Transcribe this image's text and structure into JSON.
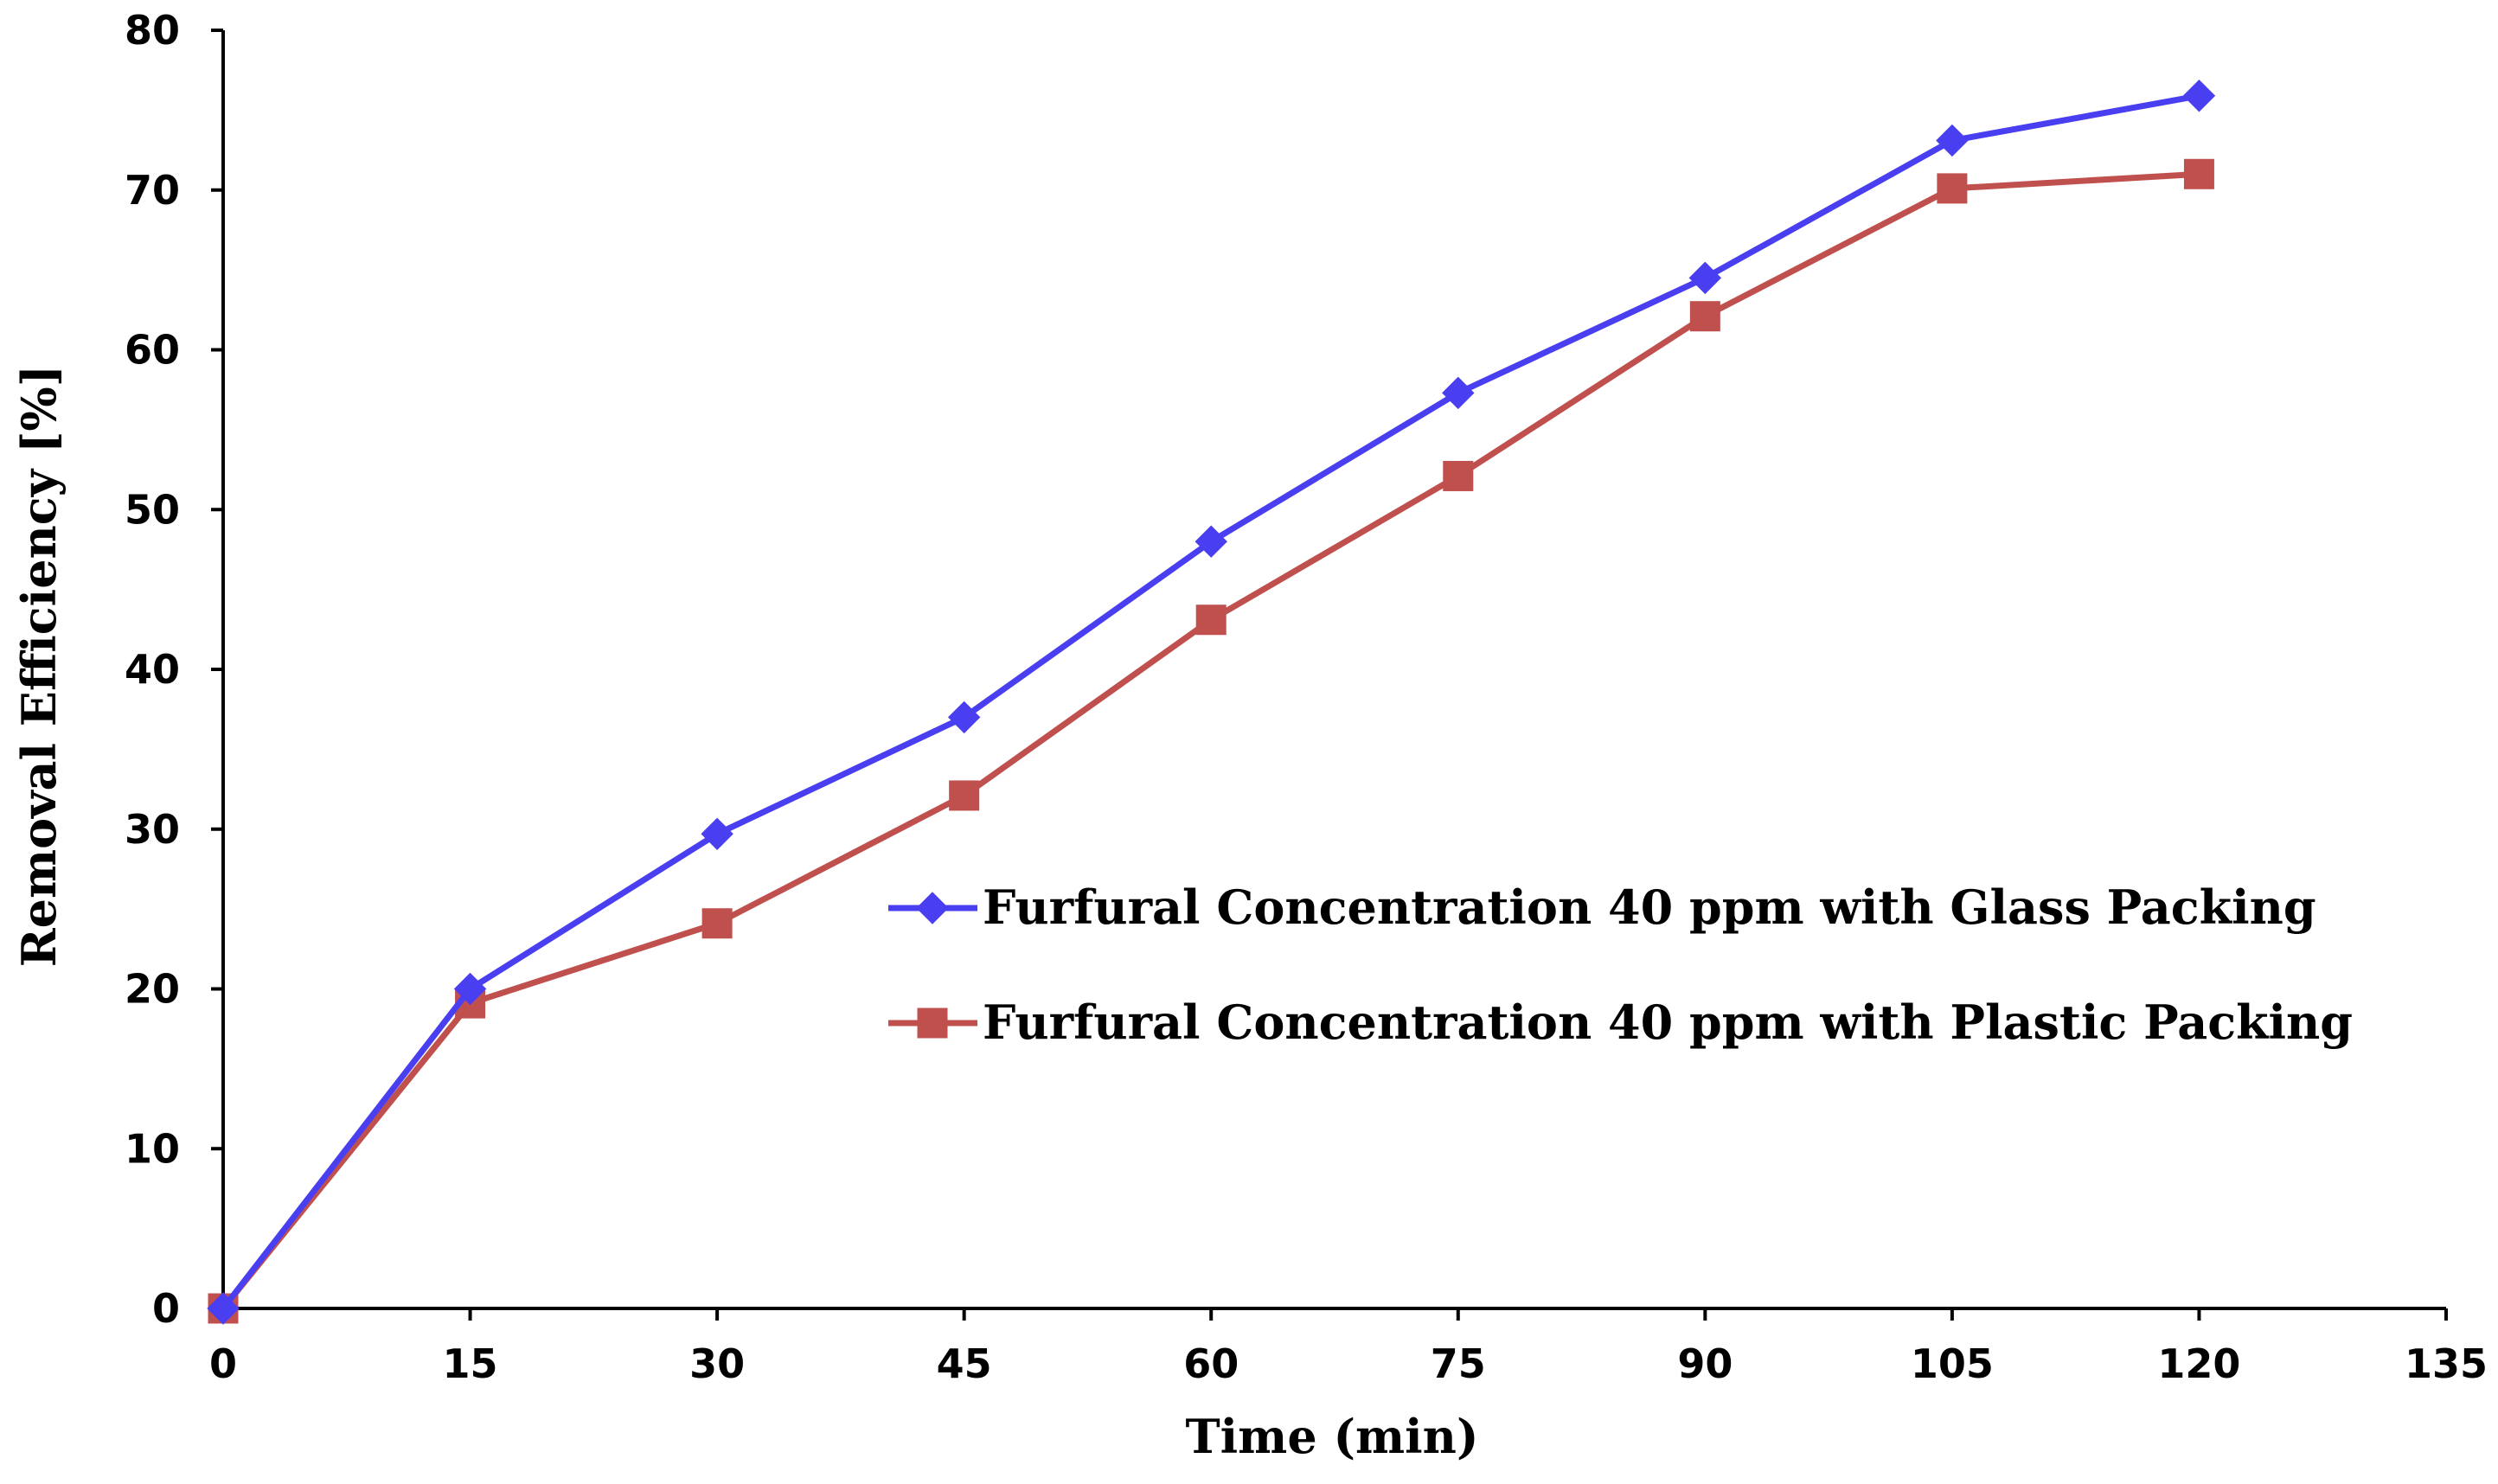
{
  "chart_data": {
    "type": "line",
    "title": "",
    "xlabel": "Time (min)",
    "ylabel": "Removal Efficiency  [%]",
    "xlim": [
      0,
      135
    ],
    "ylim": [
      0,
      80
    ],
    "x_ticks": [
      0,
      15,
      30,
      45,
      60,
      75,
      90,
      105,
      120,
      135
    ],
    "y_ticks": [
      0,
      10,
      20,
      30,
      40,
      50,
      60,
      70,
      80
    ],
    "grid": false,
    "legend_position": "center-right",
    "series": [
      {
        "name": "Furfural Concentration 40 ppm with Glass Packing",
        "color": "#4a3ff0",
        "marker": "diamond",
        "x": [
          0,
          15,
          30,
          45,
          60,
          75,
          90,
          105,
          120
        ],
        "y": [
          0,
          20,
          29.7,
          37,
          48,
          57.3,
          64.5,
          73.1,
          75.9
        ]
      },
      {
        "name": "Furfural Concentration 40 ppm with Plastic Packing",
        "color": "#c0504d",
        "marker": "square",
        "x": [
          0,
          15,
          30,
          45,
          60,
          75,
          90,
          105,
          120
        ],
        "y": [
          0,
          19.1,
          24.1,
          32.1,
          43.1,
          52.1,
          62.1,
          70.1,
          71
        ]
      }
    ]
  }
}
